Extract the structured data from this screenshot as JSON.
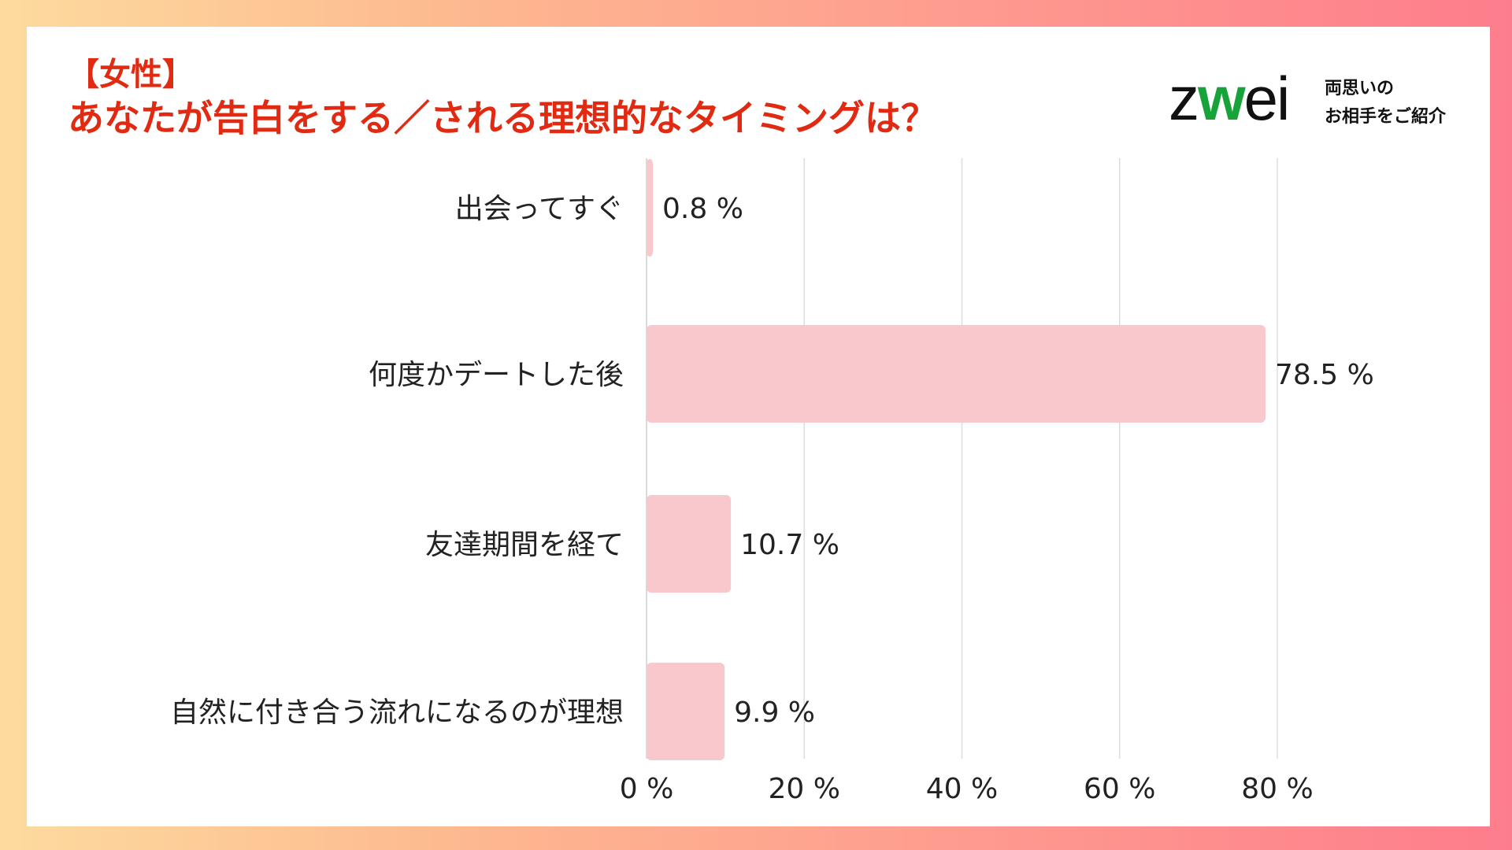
{
  "header": {
    "title_line1": "【女性】",
    "title_line2": "あなたが告白をする／される理想的なタイミングは？"
  },
  "logo": {
    "word_pre": "z",
    "word_mark": "w",
    "word_post": "ei",
    "tagline_line1": "両思いの",
    "tagline_line2": "お相手をご紹介"
  },
  "colors": {
    "title": "#e12a12",
    "bar": "#f8c8cd",
    "grid": "#dddddd",
    "logo_accent": "#18a33a"
  },
  "chart_data": {
    "type": "bar",
    "orientation": "horizontal",
    "categories": [
      "出会ってすぐ",
      "何度かデートした後",
      "友達期間を経て",
      "自然に付き合う流れになるのが理想"
    ],
    "values": [
      0.8,
      78.5,
      10.7,
      9.9
    ],
    "value_labels": [
      "0.8 %",
      "78.5 %",
      "10.7 %",
      "9.9 %"
    ],
    "xlim": [
      0,
      80
    ],
    "xticks": [
      0,
      20,
      40,
      60,
      80
    ],
    "xtick_labels": [
      "0 %",
      "20 %",
      "40 %",
      "60 %",
      "80 %"
    ],
    "grid": true,
    "title": "",
    "xlabel": "",
    "ylabel": ""
  }
}
